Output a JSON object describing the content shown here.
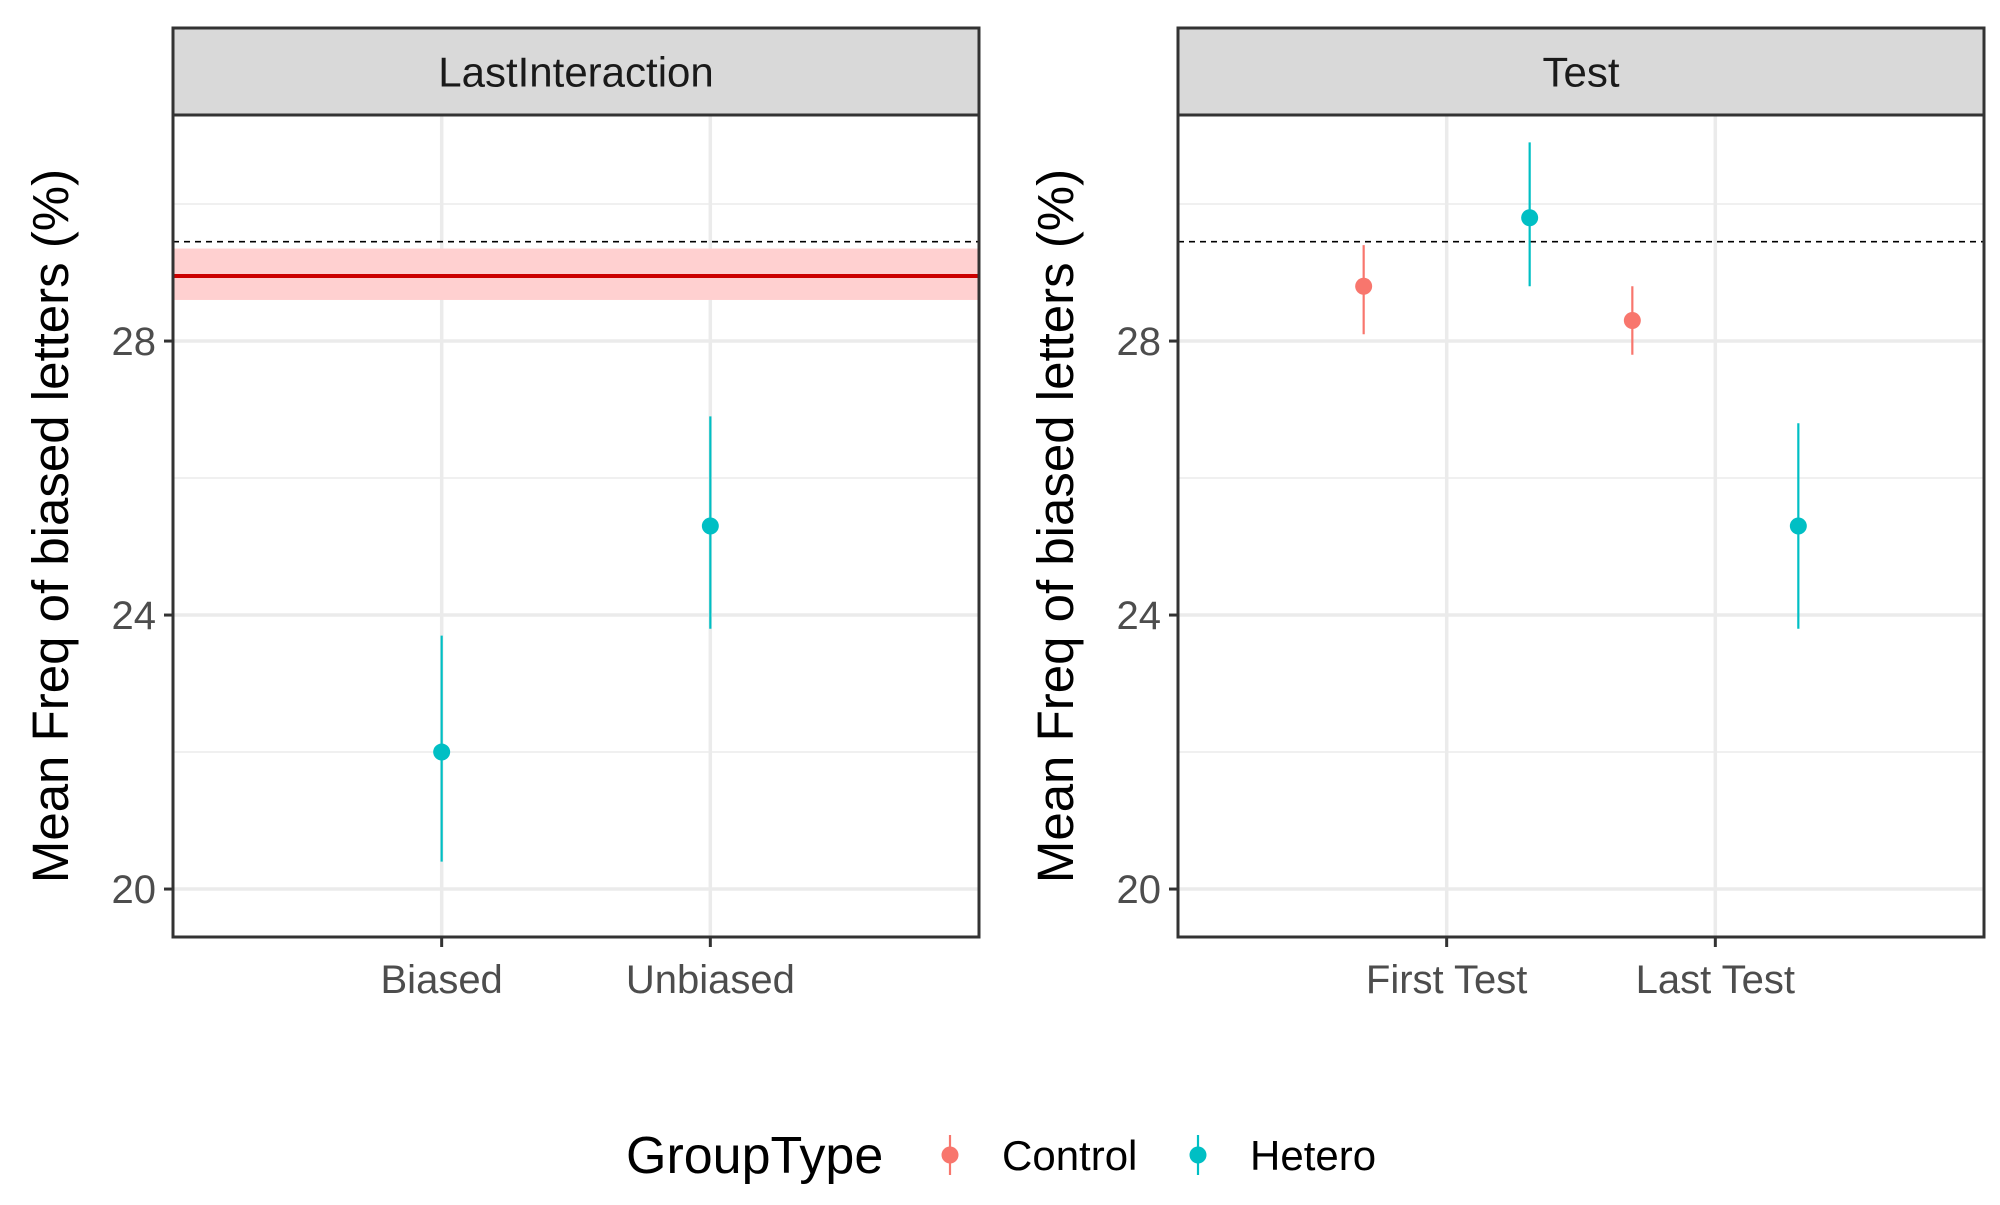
{
  "chart_data": [
    {
      "type": "errorbar",
      "facet": "LastInteraction",
      "ylabel": "Mean Freq of biased letters (%)",
      "xlabel": "",
      "categories": [
        "Biased",
        "Unbiased"
      ],
      "ylim": [
        19.3,
        31.3
      ],
      "yticks": [
        20,
        24,
        28
      ],
      "grid": true,
      "series": [
        {
          "name": "Hetero",
          "color": "#00BFC4",
          "points": [
            {
              "x": "Biased",
              "y": 22.0,
              "ymin": 20.4,
              "ymax": 23.7
            },
            {
              "x": "Unbiased",
              "y": 25.3,
              "ymin": 23.8,
              "ymax": 26.9
            }
          ]
        }
      ],
      "reference_band": {
        "y": 28.95,
        "ymin": 28.6,
        "ymax": 29.35,
        "line_color": "#CC0000",
        "fill_color": "#FFD0D0"
      },
      "dashed_line": {
        "y": 29.45
      }
    },
    {
      "type": "errorbar",
      "facet": "Test",
      "ylabel": "Mean Freq of biased letters (%)",
      "xlabel": "",
      "categories": [
        "First Test",
        "Last Test"
      ],
      "ylim": [
        19.3,
        31.3
      ],
      "yticks": [
        20,
        24,
        28
      ],
      "grid": true,
      "series": [
        {
          "name": "Control",
          "color": "#F8766D",
          "points": [
            {
              "x": "First Test",
              "y": 28.8,
              "ymin": 28.1,
              "ymax": 29.4
            },
            {
              "x": "Last Test",
              "y": 28.3,
              "ymin": 27.8,
              "ymax": 28.8
            }
          ]
        },
        {
          "name": "Hetero",
          "color": "#00BFC4",
          "points": [
            {
              "x": "First Test",
              "y": 29.8,
              "ymin": 28.8,
              "ymax": 30.9
            },
            {
              "x": "Last Test",
              "y": 25.3,
              "ymin": 23.8,
              "ymax": 26.8
            }
          ]
        }
      ],
      "dashed_line": {
        "y": 29.45
      }
    }
  ],
  "legend": {
    "title": "GroupType",
    "placement": "bottom",
    "items": [
      {
        "label": "Control",
        "color": "#F8766D"
      },
      {
        "label": "Hetero",
        "color": "#00BFC4"
      }
    ]
  }
}
